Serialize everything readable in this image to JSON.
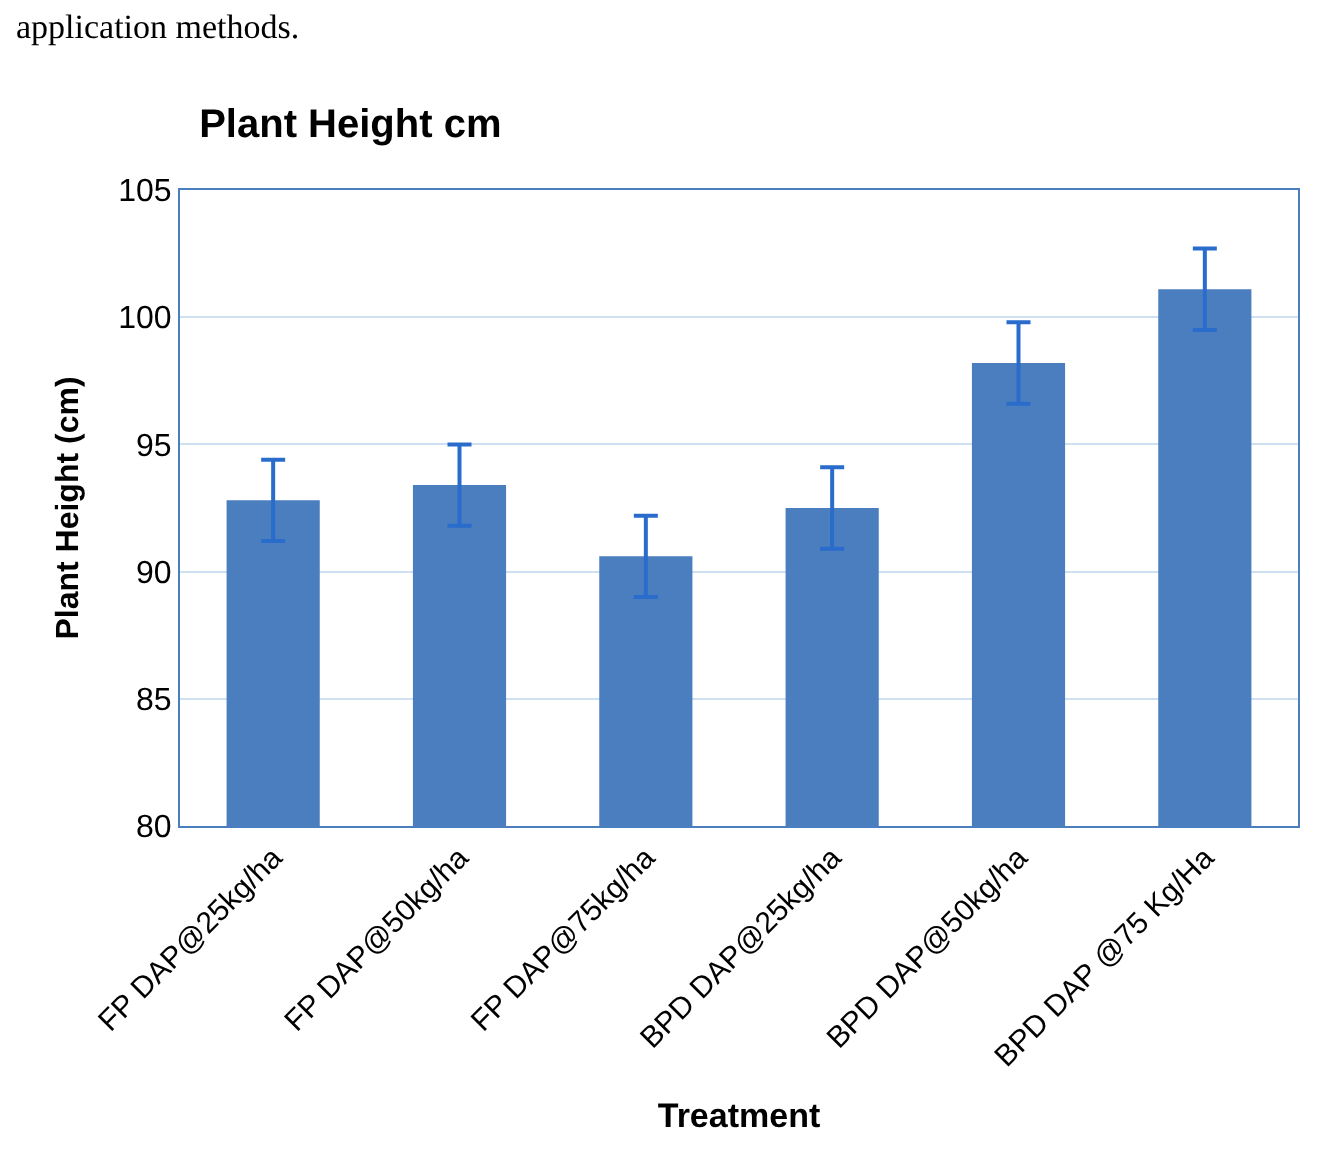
{
  "chart_data": {
    "type": "bar",
    "title": "Plant Height cm",
    "xlabel": "Treatment",
    "ylabel": "Plant Height (cm)",
    "categories": [
      "FP DAP@25kg/ha",
      "FP DAP@50kg/ha",
      "FP DAP@75kg/ha",
      "BPD DAP@25kg/ha",
      "BPD DAP@50kg/ha",
      "BPD DAP @75 Kg/Ha"
    ],
    "values": [
      92.8,
      93.4,
      90.6,
      92.5,
      98.2,
      101.1
    ],
    "errors": [
      1.6,
      1.6,
      1.6,
      1.6,
      1.6,
      1.6
    ],
    "color": "#4a7ebf",
    "ylim": [
      80,
      105
    ],
    "yticks": [
      80,
      85,
      90,
      95,
      100,
      105
    ],
    "grid": "y",
    "legend": false,
    "annotations": [
      "application methods."
    ]
  }
}
